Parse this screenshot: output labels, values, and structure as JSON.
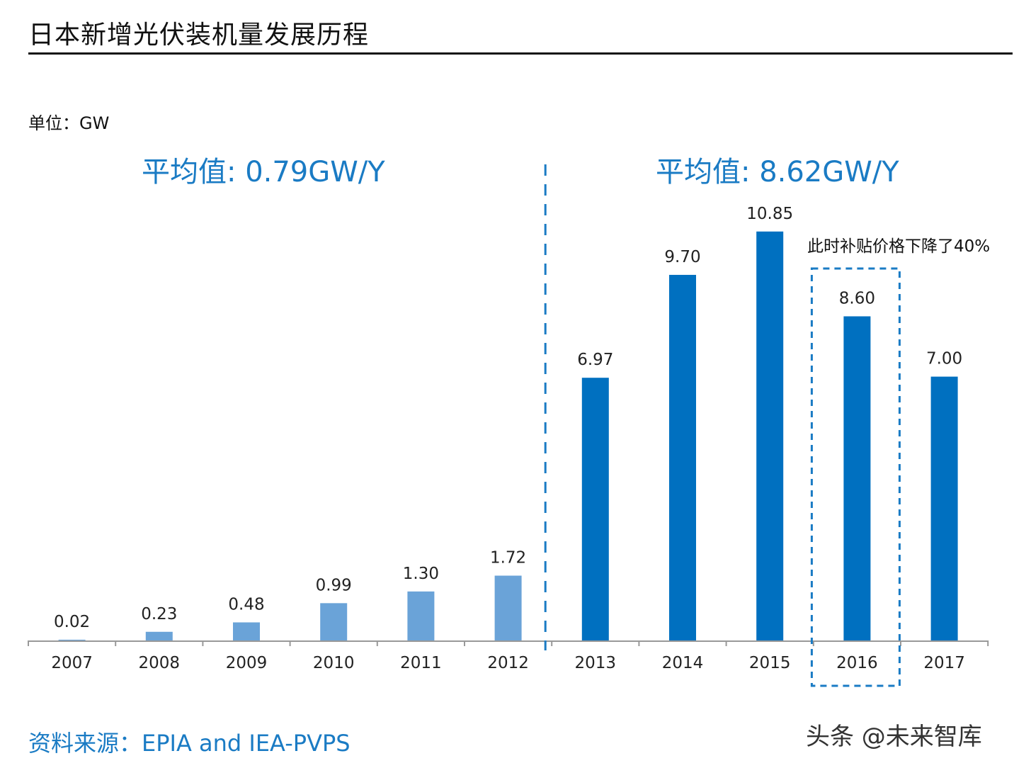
{
  "title": "日本新增光伏装机量发展历程",
  "unit_label": "单位：GW",
  "annotations": {
    "avg_left": "平均值: 0.79GW/Y",
    "avg_right": "平均值: 8.62GW/Y",
    "note_2016": "此时补贴价格下降了40%"
  },
  "source": "资料来源：EPIA and IEA-PVPS",
  "watermark": "头条 @未来智库",
  "colors": {
    "early_bars": "#6aa3d8",
    "late_bars": "#0070c0",
    "accent_text": "#1a7bc4",
    "divider": "#1a7bc4"
  },
  "chart_data": {
    "type": "bar",
    "title": "日本新增光伏装机量发展历程",
    "ylabel": "单位：GW",
    "categories": [
      "2007",
      "2008",
      "2009",
      "2010",
      "2011",
      "2012",
      "2013",
      "2014",
      "2015",
      "2016",
      "2017"
    ],
    "values": [
      0.02,
      0.23,
      0.48,
      0.99,
      1.3,
      1.72,
      6.97,
      9.7,
      10.85,
      8.6,
      7.0
    ],
    "value_labels": [
      "0.02",
      "0.23",
      "0.48",
      "0.99",
      "1.30",
      "1.72",
      "6.97",
      "9.70",
      "10.85",
      "8.60",
      "7.00"
    ],
    "ylim": [
      0,
      12
    ],
    "grid": false,
    "data_labels": true,
    "divider_between": [
      "2012",
      "2013"
    ],
    "highlighted_category": "2016"
  }
}
